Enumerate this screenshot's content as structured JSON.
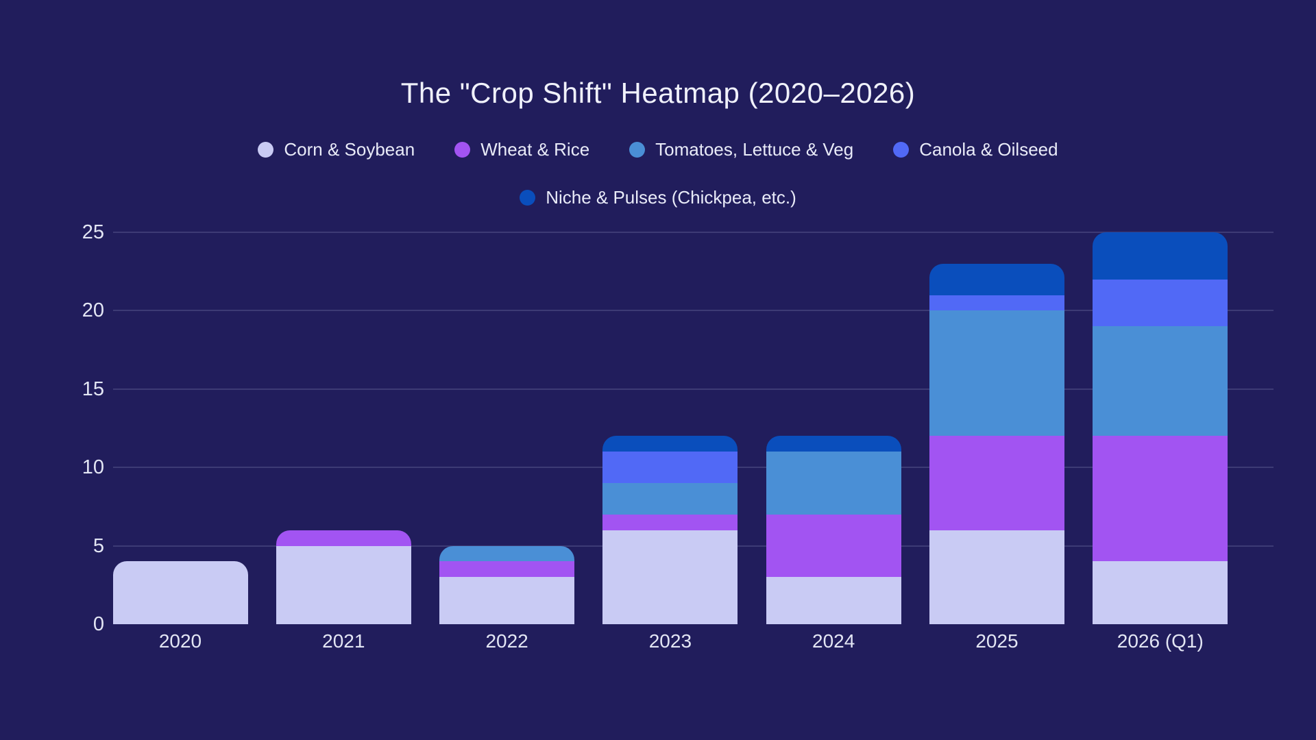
{
  "chart": {
    "title": "The \"Crop Shift\" Heatmap (2020–2026)"
  },
  "colors": {
    "background": "#211d5c",
    "grid": "#39347c",
    "title_text": "#f0f1fb",
    "axis_text": "#e3e6f4",
    "legend_text": "#e9ebf8"
  },
  "chart_data": {
    "type": "bar",
    "stacked": true,
    "title": "The \"Crop Shift\" Heatmap (2020–2026)",
    "categories": [
      "2020",
      "2021",
      "2022",
      "2023",
      "2024",
      "2025",
      "2026 (Q1)"
    ],
    "series": [
      {
        "name": "Corn & Soybean",
        "color": "#c9cbf4",
        "values": [
          4,
          5,
          3,
          6,
          3,
          6,
          4
        ]
      },
      {
        "name": "Wheat & Rice",
        "color": "#a254f2",
        "values": [
          0,
          1,
          1,
          1,
          4,
          6,
          8
        ]
      },
      {
        "name": "Tomatoes, Lettuce & Veg",
        "color": "#4a8fd6",
        "values": [
          0,
          0,
          1,
          2,
          4,
          8,
          7
        ]
      },
      {
        "name": "Canola & Oilseed",
        "color": "#5169f6",
        "values": [
          0,
          0,
          0,
          2,
          0,
          1,
          3
        ]
      },
      {
        "name": "Niche & Pulses (Chickpea, etc.)",
        "color": "#0a4ebc",
        "values": [
          0,
          0,
          0,
          1,
          1,
          2,
          3
        ]
      }
    ],
    "totals": [
      4,
      6,
      5,
      12,
      12,
      23,
      25
    ],
    "xlabel": "",
    "ylabel": "",
    "ylim": [
      0,
      25
    ],
    "yticks": [
      0,
      5,
      10,
      15,
      20,
      25
    ],
    "grid": "horizontal",
    "legend_position": "top",
    "legend_rows": [
      [
        0,
        1,
        2,
        3
      ],
      [
        4
      ]
    ]
  }
}
